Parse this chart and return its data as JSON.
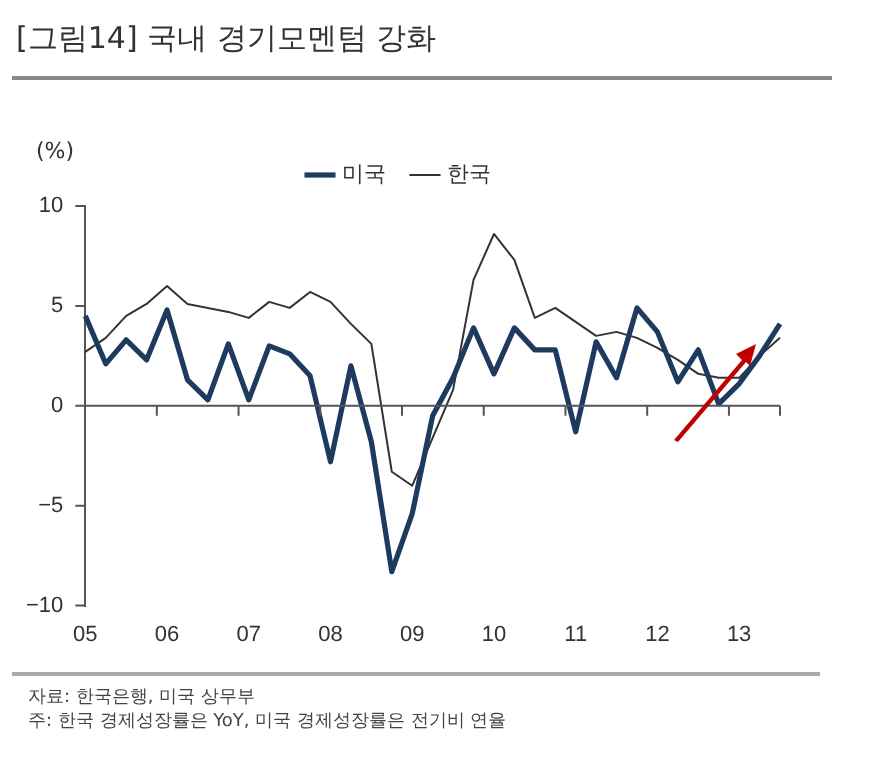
{
  "chart_data": {
    "type": "line",
    "title": "[그림14] 국내 경기모멘텀 강화",
    "ylabel": "(%)",
    "categories": [
      "05",
      null,
      null,
      null,
      "06",
      null,
      null,
      null,
      "07",
      null,
      null,
      null,
      "08",
      null,
      null,
      null,
      "09",
      null,
      null,
      null,
      "10",
      null,
      null,
      null,
      "11",
      null,
      null,
      null,
      "12",
      null,
      null,
      null,
      "13",
      null,
      null
    ],
    "series": [
      {
        "name": "미국",
        "color": "#1f3a5f",
        "values": [
          4.5,
          2.1,
          3.3,
          2.3,
          4.8,
          1.3,
          0.3,
          3.1,
          0.3,
          3.0,
          2.6,
          1.5,
          -2.8,
          2.0,
          -1.8,
          -8.3,
          -5.4,
          -0.5,
          1.4,
          3.9,
          1.6,
          3.9,
          2.8,
          2.8,
          -1.3,
          3.2,
          1.4,
          4.9,
          3.7,
          1.2,
          2.8,
          0.1,
          1.1,
          2.5,
          4.1
        ]
      },
      {
        "name": "한국",
        "color": "#333333",
        "values": [
          2.7,
          3.4,
          4.5,
          5.1,
          6.0,
          5.1,
          4.9,
          4.7,
          4.4,
          5.2,
          4.9,
          5.7,
          5.2,
          4.1,
          3.1,
          -3.3,
          -4.0,
          -1.6,
          0.8,
          6.3,
          8.6,
          7.3,
          4.4,
          4.9,
          4.2,
          3.5,
          3.7,
          3.4,
          2.9,
          2.3,
          1.6,
          1.4,
          1.4,
          2.5,
          3.4
        ]
      }
    ],
    "ylim": [
      -10,
      10
    ],
    "yticks": [
      -10,
      -5,
      0,
      5,
      10
    ],
    "legend": "top",
    "marker": "none",
    "line_style": "solid",
    "annotations": [
      "자료: 한국은행, 미국 상무부",
      "주: 한국 경제성장률은 YoY, 미국 경제성장률은 전기비 연율"
    ]
  }
}
